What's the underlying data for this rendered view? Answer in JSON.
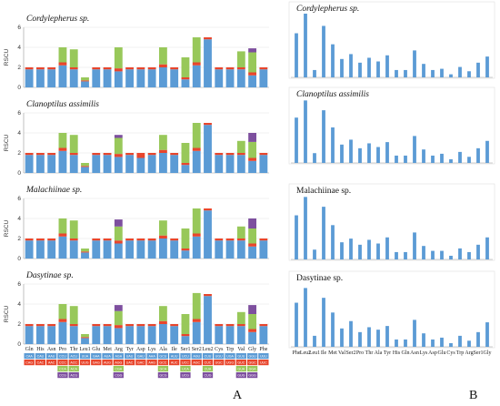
{
  "colors": {
    "seg": [
      "#5b9bd5",
      "#e8452c",
      "#98c85a",
      "#7d4f9e"
    ],
    "barB": "#5b9bd5"
  },
  "panel_labels": {
    "a": "A",
    "b": "B"
  },
  "chart_data": [
    {
      "type": "bar",
      "stacked": true,
      "title": "Cordylepherus sp.",
      "ylabel": "RSCU",
      "ylim": [
        0,
        6
      ],
      "yticks": [
        "0",
        "2",
        "4",
        "6"
      ],
      "categories": [
        "Gln",
        "His",
        "Asn",
        "Pro",
        "Thr",
        "Leu1",
        "Glu",
        "Met",
        "Arg",
        "Tyr",
        "Asp",
        "Lys",
        "Ala",
        "Ile",
        "Ser1",
        "Ser2",
        "Leu2",
        "Cys",
        "Trp",
        "Val",
        "Gly",
        "Phe"
      ],
      "series": [
        {
          "values": [
            1.8,
            1.8,
            1.8,
            2.2,
            1.8,
            0.6,
            1.8,
            1.8,
            1.6,
            1.8,
            1.8,
            1.8,
            2.0,
            1.8,
            0.8,
            2.2,
            4.8,
            1.8,
            1.8,
            1.8,
            1.2,
            1.8
          ]
        },
        {
          "values": [
            0.2,
            0.2,
            0.2,
            0.3,
            0.2,
            0.1,
            0.2,
            0.2,
            0.3,
            0.2,
            0.2,
            0.2,
            0.3,
            0.2,
            0.2,
            0.3,
            0.2,
            0.2,
            0.2,
            0.2,
            0.3,
            0.2
          ]
        },
        {
          "values": [
            0,
            0,
            0,
            1.5,
            1.8,
            0.3,
            0,
            0,
            2.1,
            0,
            0,
            0,
            1.7,
            0,
            2.0,
            2.5,
            0,
            0,
            0,
            1.6,
            2.0,
            0
          ]
        },
        {
          "values": [
            0,
            0,
            0,
            0,
            0,
            0,
            0,
            0,
            0,
            0,
            0,
            0,
            0,
            0,
            0,
            0,
            0,
            0,
            0,
            0,
            0.4,
            0
          ]
        }
      ]
    },
    {
      "type": "bar",
      "stacked": true,
      "title": "Clanoptilus assimilis",
      "ylabel": "RSCU",
      "ylim": [
        0,
        6
      ],
      "yticks": [
        "0",
        "2",
        "4",
        "6"
      ],
      "categories": [
        "Gln",
        "His",
        "Asn",
        "Pro",
        "Thr",
        "Leu1",
        "Glu",
        "Met",
        "Arg",
        "Tyr",
        "Asp",
        "Lys",
        "Ala",
        "Ile",
        "Ser1",
        "Ser2",
        "Leu2",
        "Cys",
        "Trp",
        "Val",
        "Gly",
        "Phe"
      ],
      "series": [
        {
          "values": [
            1.8,
            1.8,
            1.8,
            2.2,
            1.8,
            0.6,
            1.8,
            1.8,
            1.6,
            1.8,
            1.5,
            1.8,
            2.0,
            1.8,
            0.8,
            2.2,
            4.8,
            1.8,
            1.8,
            1.8,
            1.2,
            1.8
          ]
        },
        {
          "values": [
            0.2,
            0.2,
            0.2,
            0.3,
            0.2,
            0.1,
            0.2,
            0.2,
            0.3,
            0.2,
            0.5,
            0.2,
            0.3,
            0.2,
            0.2,
            0.3,
            0.2,
            0.2,
            0.2,
            0.2,
            0.3,
            0.2
          ]
        },
        {
          "values": [
            0,
            0,
            0,
            1.5,
            1.8,
            0.3,
            0,
            0,
            1.6,
            0,
            0,
            0,
            1.5,
            0,
            2.0,
            2.5,
            0,
            0,
            0,
            1.2,
            1.6,
            0
          ]
        },
        {
          "values": [
            0,
            0,
            0,
            0,
            0,
            0,
            0,
            0,
            0.3,
            0,
            0,
            0,
            0,
            0,
            0,
            0,
            0,
            0,
            0,
            0,
            0.9,
            0
          ]
        }
      ]
    },
    {
      "type": "bar",
      "stacked": true,
      "title": "Malachiinae sp.",
      "ylabel": "RSCU",
      "ylim": [
        0,
        6
      ],
      "yticks": [
        "0",
        "2",
        "4",
        "6"
      ],
      "categories": [
        "Gln",
        "His",
        "Asn",
        "Pro",
        "Thr",
        "Leu1",
        "Glu",
        "Met",
        "Arg",
        "Tyr",
        "Asp",
        "Lys",
        "Ala",
        "Ile",
        "Ser1",
        "Ser2",
        "Leu2",
        "Cys",
        "Trp",
        "Val",
        "Gly",
        "Phe"
      ],
      "series": [
        {
          "values": [
            1.8,
            1.8,
            1.8,
            2.2,
            1.8,
            0.6,
            1.8,
            1.8,
            1.5,
            1.8,
            1.8,
            1.8,
            2.0,
            1.8,
            0.8,
            2.2,
            4.8,
            1.8,
            1.8,
            1.8,
            1.2,
            1.8
          ]
        },
        {
          "values": [
            0.2,
            0.2,
            0.2,
            0.3,
            0.2,
            0.1,
            0.2,
            0.2,
            0.3,
            0.2,
            0.2,
            0.2,
            0.3,
            0.2,
            0.2,
            0.3,
            0.2,
            0.2,
            0.2,
            0.2,
            0.3,
            0.2
          ]
        },
        {
          "values": [
            0,
            0,
            0,
            1.5,
            1.8,
            0.3,
            0,
            0,
            1.4,
            0,
            0,
            0,
            1.5,
            0,
            2.0,
            2.5,
            0,
            0,
            0,
            1.2,
            1.5,
            0
          ]
        },
        {
          "values": [
            0,
            0,
            0,
            0,
            0,
            0,
            0,
            0,
            0.7,
            0,
            0,
            0,
            0,
            0,
            0,
            0,
            0,
            0,
            0,
            0,
            1.0,
            0
          ]
        }
      ]
    },
    {
      "type": "bar",
      "stacked": true,
      "title": "Dasytinae sp.",
      "ylabel": "RSCU",
      "ylim": [
        0,
        6
      ],
      "yticks": [
        "0",
        "2",
        "4",
        "6"
      ],
      "categories": [
        "Gln",
        "His",
        "Asn",
        "Pro",
        "Thr",
        "Leu1",
        "Glu",
        "Met",
        "Arg",
        "Tyr",
        "Asp",
        "Lys",
        "Ala",
        "Ile",
        "Ser1",
        "Ser2",
        "Leu2",
        "Cys",
        "Trp",
        "Val",
        "Gly",
        "Phe"
      ],
      "series": [
        {
          "values": [
            1.8,
            1.8,
            1.8,
            2.2,
            1.8,
            0.6,
            1.8,
            1.8,
            1.6,
            1.8,
            1.8,
            1.8,
            2.0,
            1.8,
            0.8,
            2.2,
            4.8,
            1.8,
            1.8,
            1.8,
            1.2,
            1.8
          ]
        },
        {
          "values": [
            0.2,
            0.2,
            0.2,
            0.3,
            0.2,
            0.1,
            0.2,
            0.2,
            0.3,
            0.2,
            0.2,
            0.2,
            0.3,
            0.2,
            0.2,
            0.3,
            0.2,
            0.2,
            0.2,
            0.2,
            0.3,
            0.2
          ]
        },
        {
          "values": [
            0,
            0,
            0,
            1.5,
            1.8,
            0.3,
            0,
            0,
            1.4,
            0,
            0,
            0,
            1.5,
            0,
            2.0,
            2.6,
            0,
            0,
            0,
            1.2,
            1.5,
            0
          ]
        },
        {
          "values": [
            0,
            0,
            0,
            0,
            0,
            0,
            0,
            0,
            0.6,
            0,
            0,
            0,
            0,
            0,
            0,
            0,
            0,
            0,
            0,
            0,
            0.9,
            0
          ]
        }
      ]
    },
    {
      "type": "bar",
      "title": "Cordylepherus sp.",
      "ylim": [
        0,
        520
      ],
      "categories": [
        "Phe",
        "Leu2",
        "Leu1",
        "Ile",
        "Met",
        "Val",
        "Ser2",
        "Pro",
        "Thr",
        "Ala",
        "Tyr",
        "His",
        "Gln",
        "Asn",
        "Lys",
        "Asp",
        "Glu",
        "Cys",
        "Trp",
        "Arg",
        "Ser1",
        "Gly"
      ],
      "values": [
        360,
        520,
        60,
        420,
        270,
        150,
        190,
        120,
        160,
        130,
        180,
        60,
        60,
        220,
        110,
        60,
        70,
        25,
        85,
        50,
        120,
        170
      ]
    },
    {
      "type": "bar",
      "title": "Clanoptilus assimilis",
      "ylim": [
        0,
        520
      ],
      "categories": [
        "Phe",
        "Leu2",
        "Leu1",
        "Ile",
        "Met",
        "Val",
        "Ser2",
        "Pro",
        "Thr",
        "Ala",
        "Tyr",
        "His",
        "Gln",
        "Asn",
        "Lys",
        "Asp",
        "Glu",
        "Cys",
        "Trp",
        "Arg",
        "Ser1",
        "Gly"
      ],
      "values": [
        370,
        510,
        80,
        430,
        290,
        150,
        190,
        120,
        160,
        130,
        170,
        60,
        60,
        220,
        110,
        60,
        75,
        30,
        90,
        50,
        120,
        180
      ]
    },
    {
      "type": "bar",
      "title": "Malachiinae sp.",
      "ylim": [
        0,
        520
      ],
      "categories": [
        "Phe",
        "Leu2",
        "Leu1",
        "Ile",
        "Met",
        "Val",
        "Ser2",
        "Pro",
        "Thr",
        "Ala",
        "Tyr",
        "His",
        "Gln",
        "Asn",
        "Lys",
        "Asp",
        "Glu",
        "Cys",
        "Trp",
        "Arg",
        "Ser1",
        "Gly"
      ],
      "values": [
        360,
        510,
        80,
        430,
        280,
        140,
        170,
        120,
        160,
        130,
        180,
        60,
        60,
        220,
        110,
        70,
        70,
        30,
        90,
        60,
        120,
        180
      ]
    },
    {
      "type": "bar",
      "title": "Dasytinae sp.",
      "ylim": [
        0,
        520
      ],
      "categories": [
        "Phe",
        "Leu2",
        "Leu1",
        "Ile",
        "Met",
        "Val",
        "Ser2",
        "Pro",
        "Thr",
        "Ala",
        "Tyr",
        "His",
        "Gln",
        "Asn",
        "Lys",
        "Asp",
        "Glu",
        "Cys",
        "Trp",
        "Arg",
        "Ser1",
        "Gly"
      ],
      "values": [
        360,
        480,
        90,
        400,
        280,
        150,
        210,
        120,
        160,
        140,
        170,
        60,
        60,
        220,
        110,
        60,
        75,
        30,
        90,
        50,
        120,
        200
      ]
    }
  ],
  "codon_table": {
    "rows": [
      [
        "CAA",
        "CAU",
        "AAU",
        "CCU",
        "ACU",
        "UUA",
        "GAA",
        "AUA",
        "AGA",
        "UAU",
        "GAU",
        "AAA",
        "GCU",
        "AUU",
        "UCU",
        "AGU",
        "CUU",
        "UGU",
        "UGA",
        "GUU",
        "GGU",
        "UUU"
      ],
      [
        "CAG",
        "CAC",
        "AAC",
        "CCC",
        "ACC",
        "UUG",
        "GAG",
        "AUG",
        "AGG",
        "UAC",
        "GAC",
        "AAG",
        "GCC",
        "AUC",
        "UCC",
        "AGC",
        "CUC",
        "UGC",
        "UGG",
        "GUC",
        "GGC",
        "UUC"
      ],
      [
        "",
        "",
        "",
        "CCA",
        "ACA",
        "",
        "",
        "",
        "CGA",
        "",
        "",
        "",
        "GCA",
        "",
        "UCA",
        "",
        "CUA",
        "",
        "",
        "GUA",
        "GGA",
        ""
      ],
      [
        "",
        "",
        "",
        "CCG",
        "ACG",
        "",
        "",
        "",
        "CGG",
        "",
        "",
        "",
        "GCG",
        "",
        "UCG",
        "",
        "CUG",
        "",
        "",
        "GUG",
        "GGG",
        ""
      ]
    ]
  }
}
